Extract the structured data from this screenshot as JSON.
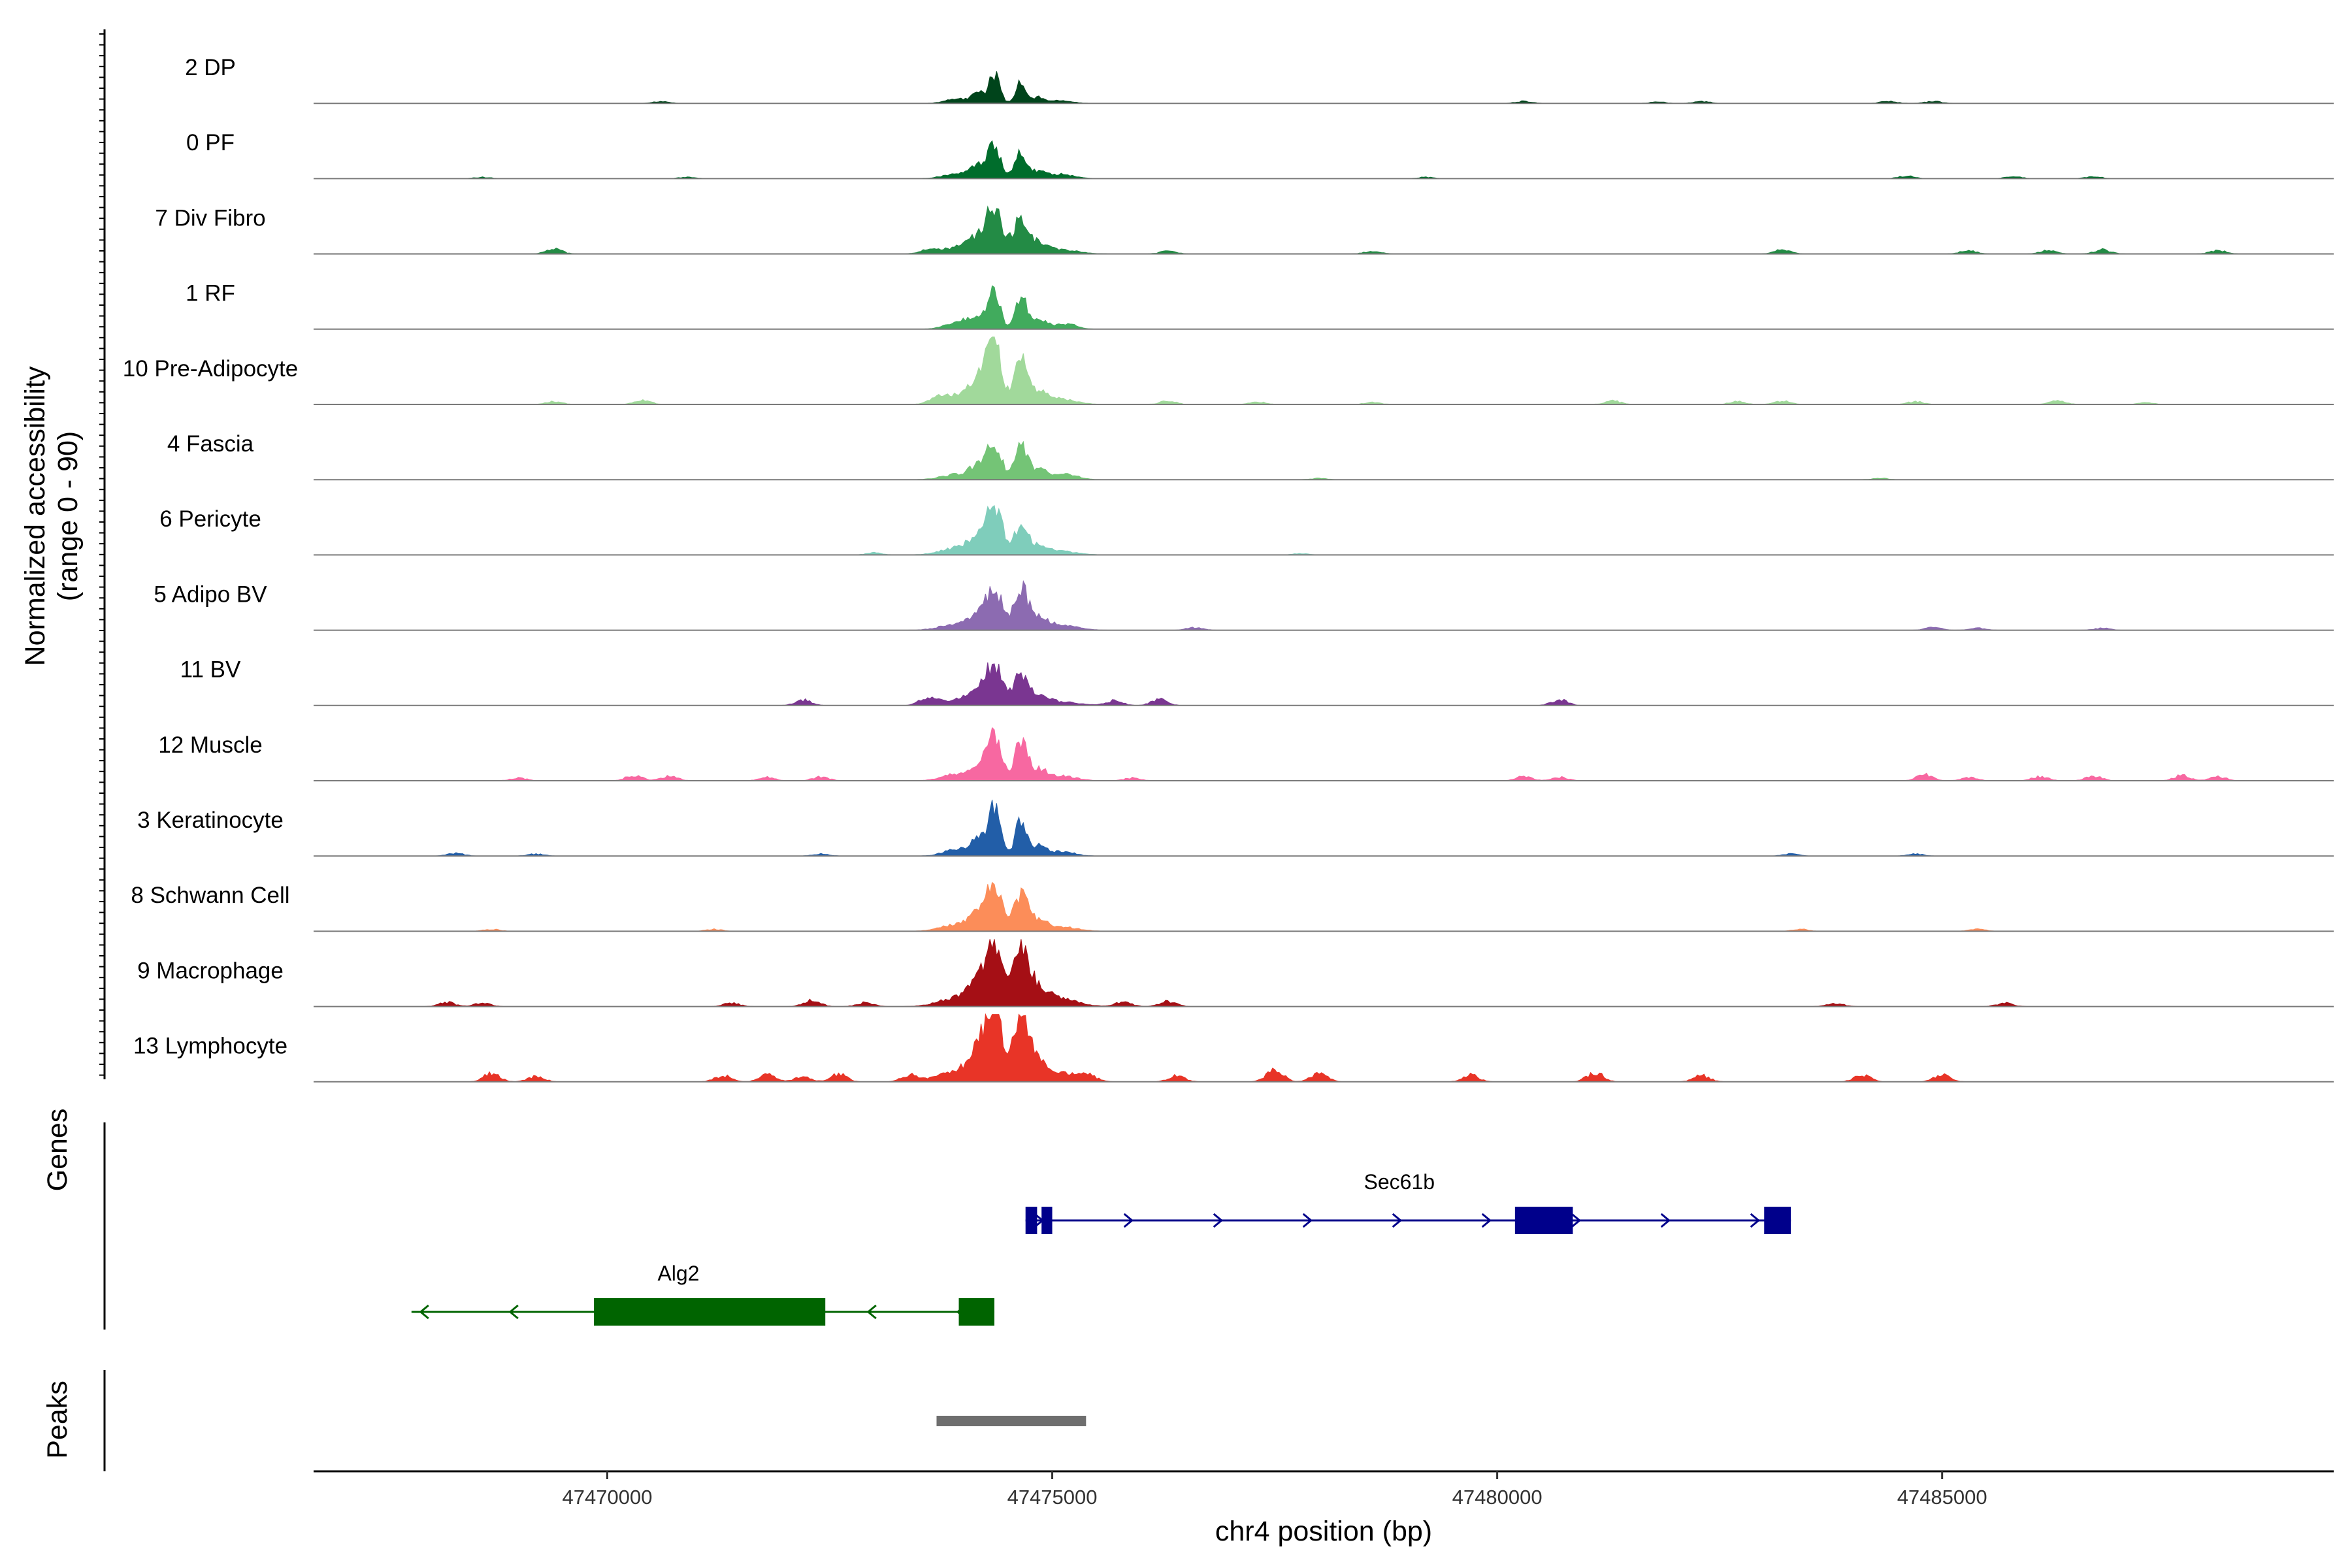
{
  "chart_data": {
    "type": "area",
    "title": "",
    "chromosome": "chr4",
    "xlabel": "chr4 position (bp)",
    "ylabel": "Normalized accessibility (range 0 - 90)",
    "ylabel_line1": "Normalized accessibility",
    "ylabel_line2": "(range 0 - 90)",
    "ylim": [
      0,
      90
    ],
    "xlim": [
      47466700,
      47489400
    ],
    "xticks": [
      47470000,
      47475000,
      47480000,
      47485000
    ],
    "xtick_labels": [
      "47470000",
      "47475000",
      "47480000",
      "47485000"
    ],
    "peak_centers": [
      47474350,
      47474650
    ],
    "tracks": [
      {
        "name": "2 DP",
        "color": "#00441b",
        "peak1": 38,
        "peak2": 30,
        "spread": 1.0,
        "noise": [
          [
            47470600,
            3
          ],
          [
            47480300,
            3
          ],
          [
            47481800,
            2
          ],
          [
            47482300,
            3
          ],
          [
            47484400,
            3
          ],
          [
            47484900,
            3
          ]
        ]
      },
      {
        "name": "0 PF",
        "color": "#006d2c",
        "peak1": 42,
        "peak2": 34,
        "spread": 1.2,
        "noise": [
          [
            47468600,
            2
          ],
          [
            47470900,
            2
          ],
          [
            47475100,
            2
          ],
          [
            47479200,
            2
          ],
          [
            47484600,
            4
          ],
          [
            47485800,
            3
          ],
          [
            47486700,
            3
          ]
        ]
      },
      {
        "name": "7 Div Fibro",
        "color": "#238b45",
        "peak1": 55,
        "peak2": 45,
        "spread": 1.5,
        "noise": [
          [
            47469400,
            7
          ],
          [
            47473600,
            5
          ],
          [
            47476300,
            4
          ],
          [
            47478600,
            4
          ],
          [
            47483200,
            6
          ],
          [
            47485300,
            5
          ],
          [
            47486200,
            5
          ],
          [
            47486800,
            6
          ],
          [
            47488100,
            5
          ]
        ]
      },
      {
        "name": "1 RF",
        "color": "#41ab5d",
        "peak1": 48,
        "peak2": 45,
        "spread": 1.1,
        "noise": [
          [
            47474000,
            5
          ],
          [
            47475200,
            3
          ]
        ]
      },
      {
        "name": "10 Pre-Adipocyte",
        "color": "#a1d99b",
        "peak1": 88,
        "peak2": 60,
        "spread": 1.3,
        "noise": [
          [
            47469400,
            4
          ],
          [
            47470400,
            6
          ],
          [
            47473700,
            6
          ],
          [
            47476300,
            5
          ],
          [
            47477300,
            4
          ],
          [
            47478600,
            3
          ],
          [
            47481300,
            5
          ],
          [
            47482700,
            4
          ],
          [
            47483200,
            5
          ],
          [
            47484700,
            4
          ],
          [
            47486300,
            5
          ],
          [
            47487300,
            3
          ]
        ]
      },
      {
        "name": "4 Fascia",
        "color": "#74c476",
        "peak1": 48,
        "peak2": 44,
        "spread": 1.3,
        "noise": [
          [
            47475200,
            3
          ],
          [
            47478000,
            2
          ],
          [
            47484300,
            2
          ]
        ]
      },
      {
        "name": "6 Pericyte",
        "color": "#7fcdbb",
        "peak1": 65,
        "peak2": 40,
        "spread": 1.4,
        "noise": [
          [
            47473000,
            3
          ],
          [
            47477800,
            2
          ]
        ]
      },
      {
        "name": "5 Adipo BV",
        "color": "#8c6bb1",
        "peak1": 55,
        "peak2": 55,
        "spread": 1.4,
        "noise": [
          [
            47476600,
            4
          ],
          [
            47484900,
            4
          ],
          [
            47485400,
            3
          ],
          [
            47486800,
            3
          ]
        ]
      },
      {
        "name": "11 BV",
        "color": "#7a3691",
        "peak1": 50,
        "peak2": 42,
        "spread": 1.5,
        "noise": [
          [
            47472200,
            8
          ],
          [
            47473600,
            10
          ],
          [
            47475700,
            7
          ],
          [
            47476200,
            9
          ],
          [
            47480700,
            8
          ]
        ]
      },
      {
        "name": "12 Muscle",
        "color": "#f768a1",
        "peak1": 58,
        "peak2": 52,
        "spread": 1.3,
        "noise": [
          [
            47469000,
            4
          ],
          [
            47470300,
            8
          ],
          [
            47470700,
            7
          ],
          [
            47471800,
            5
          ],
          [
            47472400,
            6
          ],
          [
            47475900,
            4
          ],
          [
            47480300,
            6
          ],
          [
            47480700,
            5
          ],
          [
            47484800,
            9
          ],
          [
            47485300,
            5
          ],
          [
            47486100,
            6
          ],
          [
            47486700,
            7
          ],
          [
            47487700,
            8
          ],
          [
            47488100,
            6
          ]
        ]
      },
      {
        "name": "3 Keratinocyte",
        "color": "#225ea8",
        "peak1": 62,
        "peak2": 50,
        "spread": 1.1,
        "noise": [
          [
            47468300,
            4
          ],
          [
            47469200,
            3
          ],
          [
            47472400,
            3
          ],
          [
            47483300,
            3
          ],
          [
            47484700,
            3
          ]
        ]
      },
      {
        "name": "8 Schwann Cell",
        "color": "#fc8d59",
        "peak1": 58,
        "peak2": 48,
        "spread": 1.4,
        "noise": [
          [
            47468700,
            3
          ],
          [
            47471200,
            3
          ],
          [
            47483400,
            3
          ],
          [
            47485400,
            3
          ]
        ]
      },
      {
        "name": "9 Macrophage",
        "color": "#a50f15",
        "peak1": 82,
        "peak2": 85,
        "spread": 1.5,
        "noise": [
          [
            47468200,
            6
          ],
          [
            47468600,
            5
          ],
          [
            47471400,
            5
          ],
          [
            47472300,
            9
          ],
          [
            47472900,
            6
          ],
          [
            47475800,
            7
          ],
          [
            47476300,
            8
          ],
          [
            47483800,
            5
          ],
          [
            47485700,
            5
          ]
        ]
      },
      {
        "name": "13 Lymphocyte",
        "color": "#e83427",
        "peak1": 90,
        "peak2": 88,
        "spread": 1.6,
        "noise": [
          [
            47468700,
            12
          ],
          [
            47469200,
            8
          ],
          [
            47471300,
            9
          ],
          [
            47471800,
            10
          ],
          [
            47472200,
            8
          ],
          [
            47472600,
            11
          ],
          [
            47473400,
            10
          ],
          [
            47475400,
            8
          ],
          [
            47476400,
            9
          ],
          [
            47477500,
            18
          ],
          [
            47478000,
            12
          ],
          [
            47479700,
            10
          ],
          [
            47481100,
            14
          ],
          [
            47482300,
            9
          ],
          [
            47484100,
            10
          ],
          [
            47485000,
            11
          ]
        ]
      }
    ],
    "genes": [
      {
        "name": "Sec61b",
        "strand": "+",
        "color": "#00008b",
        "start": 47474700,
        "end": 47483300,
        "exons": [
          [
            47474700,
            47474830
          ],
          [
            47474880,
            47475000
          ],
          [
            47480200,
            47480850
          ],
          [
            47483000,
            47483300
          ]
        ]
      },
      {
        "name": "Alg2",
        "strand": "-",
        "color": "#006400",
        "start": 47467800,
        "end": 47474350,
        "exons": [
          [
            47469850,
            47472450
          ],
          [
            47473950,
            47474350
          ]
        ]
      }
    ],
    "peaks": [
      {
        "start": 47473700,
        "end": 47475380,
        "color": "#6e6e6e"
      }
    ],
    "panel_labels": {
      "genes": "Genes",
      "peaks": "Peaks"
    }
  }
}
